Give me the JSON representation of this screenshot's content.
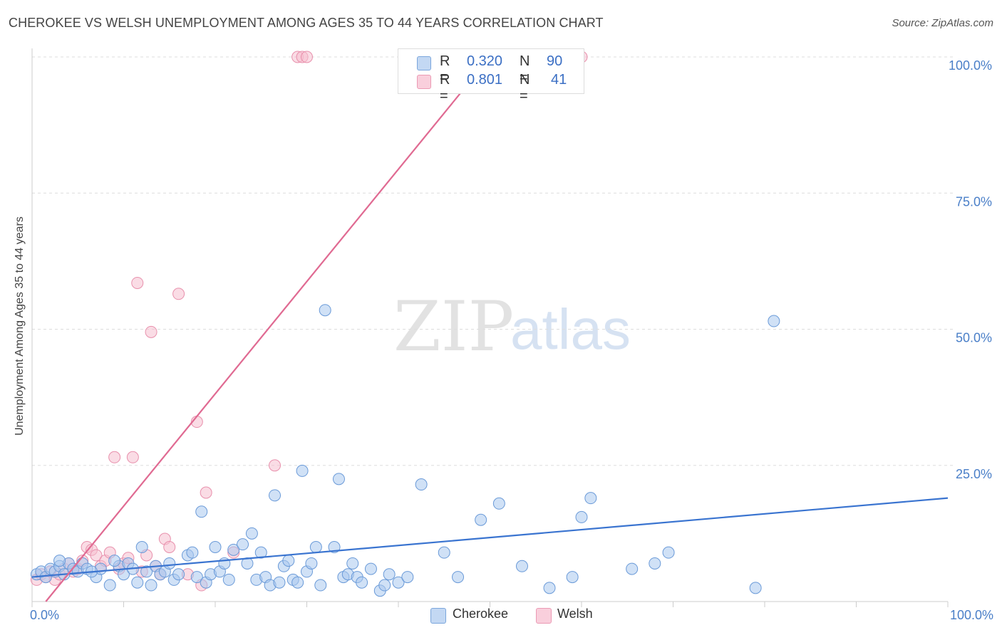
{
  "header": {
    "title": "CHEROKEE VS WELSH UNEMPLOYMENT AMONG AGES 35 TO 44 YEARS CORRELATION CHART",
    "source": "Source: ZipAtlas.com"
  },
  "watermark": {
    "zip": "ZIP",
    "atlas": "atlas"
  },
  "legend": {
    "cherokee": {
      "r_label": "R =",
      "r_value": "0.320",
      "n_label": "N =",
      "n_value": "90"
    },
    "welsh": {
      "r_label": "R =",
      "r_value": "0.801",
      "n_label": "N =",
      "n_value": "41"
    }
  },
  "colors": {
    "cherokee_fill": "#aac8ee",
    "cherokee_stroke": "#6a9ad8",
    "cherokee_line": "#3a74d0",
    "welsh_fill": "#f6bfd0",
    "welsh_stroke": "#e890ac",
    "welsh_line": "#e06a92",
    "grid": "#dddddd",
    "tick_text": "#4a7fc8"
  },
  "chart_data": {
    "type": "scatter",
    "title": "CHEROKEE VS WELSH UNEMPLOYMENT AMONG AGES 35 TO 44 YEARS CORRELATION CHART",
    "xlabel": "",
    "ylabel": "Unemployment Among Ages 35 to 44 years",
    "xlim": [
      0,
      100
    ],
    "ylim": [
      0,
      100
    ],
    "x_tick_labels": [
      "0.0%",
      "100.0%"
    ],
    "y_ticks": [
      25,
      50,
      75,
      100
    ],
    "y_tick_labels": [
      "25.0%",
      "50.0%",
      "75.0%",
      "100.0%"
    ],
    "grid": true,
    "legend_position": "top-center",
    "series": [
      {
        "name": "Cherokee",
        "trend": {
          "x": [
            0,
            100
          ],
          "y": [
            4.5,
            19.0
          ]
        },
        "points": [
          [
            0.5,
            5.0
          ],
          [
            1.0,
            5.5
          ],
          [
            1.5,
            4.5
          ],
          [
            2.0,
            6.0
          ],
          [
            2.5,
            5.5
          ],
          [
            3.0,
            6.5
          ],
          [
            3.5,
            5.0
          ],
          [
            4.0,
            7.0
          ],
          [
            4.5,
            6.0
          ],
          [
            5.0,
            5.5
          ],
          [
            5.5,
            7.0
          ],
          [
            6.0,
            6.0
          ],
          [
            7.0,
            4.5
          ],
          [
            7.5,
            6.0
          ],
          [
            8.5,
            3.0
          ],
          [
            9.5,
            6.5
          ],
          [
            10.0,
            5.0
          ],
          [
            10.5,
            7.0
          ],
          [
            11.0,
            6.0
          ],
          [
            11.5,
            3.5
          ],
          [
            12.0,
            10.0
          ],
          [
            12.5,
            5.5
          ],
          [
            13.0,
            3.0
          ],
          [
            13.5,
            6.5
          ],
          [
            14.0,
            5.0
          ],
          [
            14.5,
            5.5
          ],
          [
            15.0,
            7.0
          ],
          [
            15.5,
            4.0
          ],
          [
            16.0,
            5.0
          ],
          [
            17.0,
            8.5
          ],
          [
            17.5,
            9.0
          ],
          [
            18.0,
            4.5
          ],
          [
            18.5,
            16.5
          ],
          [
            19.0,
            3.5
          ],
          [
            19.5,
            5.0
          ],
          [
            20.0,
            10.0
          ],
          [
            20.5,
            5.5
          ],
          [
            21.0,
            7.0
          ],
          [
            21.5,
            4.0
          ],
          [
            22.0,
            9.5
          ],
          [
            23.0,
            10.5
          ],
          [
            23.5,
            7.0
          ],
          [
            24.0,
            12.5
          ],
          [
            24.5,
            4.0
          ],
          [
            25.0,
            9.0
          ],
          [
            25.5,
            4.5
          ],
          [
            26.0,
            3.0
          ],
          [
            26.5,
            19.5
          ],
          [
            27.0,
            3.5
          ],
          [
            27.5,
            6.5
          ],
          [
            28.0,
            7.5
          ],
          [
            28.5,
            4.0
          ],
          [
            29.0,
            3.5
          ],
          [
            29.5,
            24.0
          ],
          [
            30.0,
            5.5
          ],
          [
            30.5,
            7.0
          ],
          [
            31.0,
            10.0
          ],
          [
            31.5,
            3.0
          ],
          [
            32.0,
            53.5
          ],
          [
            33.0,
            10.0
          ],
          [
            33.5,
            22.5
          ],
          [
            34.0,
            4.5
          ],
          [
            34.5,
            5.0
          ],
          [
            35.0,
            7.0
          ],
          [
            35.5,
            4.5
          ],
          [
            36.0,
            3.5
          ],
          [
            37.0,
            6.0
          ],
          [
            38.0,
            2.0
          ],
          [
            38.5,
            3.0
          ],
          [
            39.0,
            5.0
          ],
          [
            40.0,
            3.5
          ],
          [
            41.0,
            4.5
          ],
          [
            42.5,
            21.5
          ],
          [
            45.0,
            9.0
          ],
          [
            46.5,
            4.5
          ],
          [
            49.0,
            15.0
          ],
          [
            51.0,
            18.0
          ],
          [
            53.5,
            6.5
          ],
          [
            56.5,
            2.5
          ],
          [
            59.0,
            4.5
          ],
          [
            60.0,
            15.5
          ],
          [
            61.0,
            19.0
          ],
          [
            65.5,
            6.0
          ],
          [
            68.0,
            7.0
          ],
          [
            69.5,
            9.0
          ],
          [
            79.0,
            2.5
          ],
          [
            81.0,
            51.5
          ],
          [
            3.0,
            7.5
          ],
          [
            6.5,
            5.5
          ],
          [
            9.0,
            7.5
          ]
        ]
      },
      {
        "name": "Welsh",
        "trend": {
          "x": [
            1.5,
            50.0
          ],
          "y": [
            0,
            100
          ]
        },
        "points": [
          [
            0.5,
            4.0
          ],
          [
            1.0,
            5.0
          ],
          [
            1.5,
            4.5
          ],
          [
            2.0,
            5.5
          ],
          [
            2.5,
            4.0
          ],
          [
            3.0,
            5.0
          ],
          [
            3.5,
            6.0
          ],
          [
            4.0,
            7.0
          ],
          [
            4.5,
            5.5
          ],
          [
            5.0,
            6.0
          ],
          [
            5.5,
            7.5
          ],
          [
            6.0,
            10.0
          ],
          [
            6.5,
            9.5
          ],
          [
            7.0,
            8.5
          ],
          [
            7.5,
            6.5
          ],
          [
            8.0,
            7.5
          ],
          [
            8.5,
            9.0
          ],
          [
            9.0,
            26.5
          ],
          [
            9.5,
            6.0
          ],
          [
            10.0,
            7.0
          ],
          [
            10.5,
            8.0
          ],
          [
            11.0,
            26.5
          ],
          [
            11.5,
            58.5
          ],
          [
            12.0,
            5.5
          ],
          [
            12.5,
            8.5
          ],
          [
            13.0,
            49.5
          ],
          [
            13.5,
            6.5
          ],
          [
            14.0,
            5.0
          ],
          [
            14.5,
            11.5
          ],
          [
            15.0,
            10.0
          ],
          [
            16.0,
            56.5
          ],
          [
            17.0,
            5.0
          ],
          [
            18.0,
            33.0
          ],
          [
            18.5,
            3.0
          ],
          [
            19.0,
            20.0
          ],
          [
            22.0,
            9.0
          ],
          [
            26.5,
            25.0
          ],
          [
            29.0,
            100.0
          ],
          [
            29.5,
            100.0
          ],
          [
            30.0,
            100.0
          ],
          [
            60.0,
            100.0
          ]
        ]
      }
    ]
  },
  "bottom_legend": {
    "cherokee": "Cherokee",
    "welsh": "Welsh"
  }
}
